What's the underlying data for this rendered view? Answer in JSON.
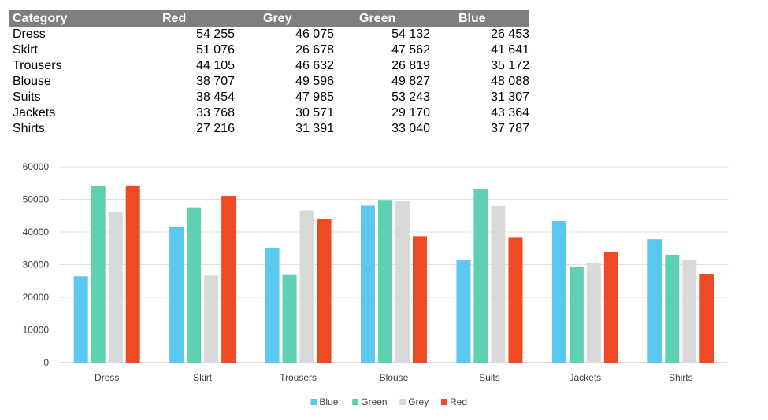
{
  "table": {
    "headers": [
      "Category",
      "Red",
      "Grey",
      "Green",
      "Blue"
    ],
    "rows": [
      [
        "Dress",
        "54 255",
        "46 075",
        "54 132",
        "26 453"
      ],
      [
        "Skirt",
        "51 076",
        "26 678",
        "47 562",
        "41 641"
      ],
      [
        "Trousers",
        "44 105",
        "46 632",
        "26 819",
        "35 172"
      ],
      [
        "Blouse",
        "38 707",
        "49 596",
        "49 827",
        "48 088"
      ],
      [
        "Suits",
        "38 454",
        "47 985",
        "53 243",
        "31 307"
      ],
      [
        "Jackets",
        "33 768",
        "30 571",
        "29 170",
        "43 364"
      ],
      [
        "Shirts",
        "27 216",
        "31 391",
        "33 040",
        "37 787"
      ]
    ]
  },
  "chart_data": {
    "type": "bar",
    "title": "",
    "xlabel": "",
    "ylabel": "",
    "ylim": [
      0,
      60000
    ],
    "yticks": [
      "60000",
      "50000",
      "40000",
      "30000",
      "20000",
      "10000",
      "0"
    ],
    "grid": true,
    "legend_position": "bottom",
    "categories": [
      "Dress",
      "Skirt",
      "Trousers",
      "Blouse",
      "Suits",
      "Jackets",
      "Shirts"
    ],
    "series": [
      {
        "name": "Blue",
        "color": "#5bc8f0",
        "values": [
          26453,
          41641,
          35172,
          48088,
          31307,
          43364,
          37787
        ]
      },
      {
        "name": "Green",
        "color": "#5fd0b0",
        "values": [
          54132,
          47562,
          26819,
          49827,
          53243,
          29170,
          33040
        ]
      },
      {
        "name": "Grey",
        "color": "#d9d9d9",
        "values": [
          46075,
          26678,
          46632,
          49596,
          47985,
          30571,
          31391
        ]
      },
      {
        "name": "Red",
        "color": "#f04a25",
        "values": [
          54255,
          51076,
          44105,
          38707,
          38454,
          33768,
          27216
        ]
      }
    ]
  }
}
